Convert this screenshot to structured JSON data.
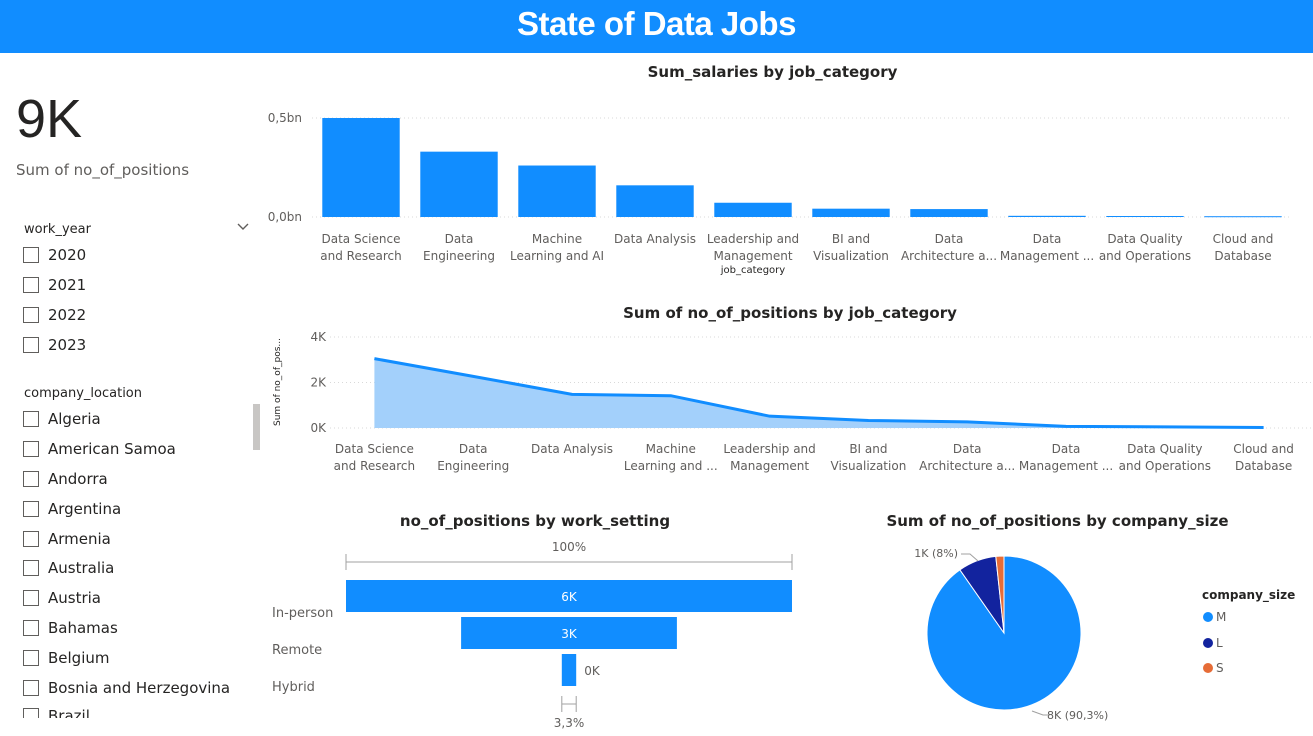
{
  "title": "State of Data Jobs",
  "kpi": {
    "value": "9K",
    "label": "Sum of no_of_positions"
  },
  "slicers": {
    "work_year": {
      "title": "work_year",
      "items": [
        "2020",
        "2021",
        "2022",
        "2023"
      ]
    },
    "company_location": {
      "title": "company_location",
      "items": [
        "Algeria",
        "American Samoa",
        "Andorra",
        "Argentina",
        "Armenia",
        "Australia",
        "Austria",
        "Bahamas",
        "Belgium",
        "Bosnia and Herzegovina",
        "Brazil"
      ]
    }
  },
  "colors": {
    "accent": "#118dff",
    "area_fill": "#a3d0fb",
    "dark_blue": "#12239e",
    "orange": "#e66c37",
    "banner": "#118dff"
  },
  "chart_data": [
    {
      "type": "bar",
      "title": "Sum_salaries by job_category",
      "xlabel": "job_category",
      "ylabel": "",
      "categories": [
        [
          "Data Science",
          "and Research"
        ],
        [
          "Data",
          "Engineering"
        ],
        [
          "Machine",
          "Learning and AI"
        ],
        [
          "Data Analysis"
        ],
        [
          "Leadership and",
          "Management"
        ],
        [
          "BI and",
          "Visualization"
        ],
        [
          "Data",
          "Architecture a..."
        ],
        [
          "Data",
          "Management ..."
        ],
        [
          "Data Quality",
          "and Operations"
        ],
        [
          "Cloud and",
          "Database"
        ]
      ],
      "values": [
        0.5,
        0.33,
        0.26,
        0.16,
        0.072,
        0.042,
        0.04,
        0.006,
        0.005,
        0.004
      ],
      "ylim": [
        0,
        0.5
      ],
      "yticks": [
        {
          "v": 0,
          "label": "0,0bn"
        },
        {
          "v": 0.5,
          "label": "0,5bn"
        }
      ],
      "grid": true
    },
    {
      "type": "area",
      "title": "Sum of no_of_positions by job_category",
      "ylabel": "Sum of no_of_pos...",
      "categories": [
        [
          "Data Science",
          "and Research"
        ],
        [
          "Data",
          "Engineering"
        ],
        [
          "Data Analysis"
        ],
        [
          "Machine",
          "Learning and ..."
        ],
        [
          "Leadership and",
          "Management"
        ],
        [
          "BI and",
          "Visualization"
        ],
        [
          "Data",
          "Architecture a..."
        ],
        [
          "Data",
          "Management ..."
        ],
        [
          "Data Quality",
          "and Operations"
        ],
        [
          "Cloud and",
          "Database"
        ]
      ],
      "values": [
        3050,
        2270,
        1480,
        1420,
        520,
        330,
        270,
        70,
        50,
        20
      ],
      "ylim": [
        0,
        4000
      ],
      "yticks": [
        {
          "v": 0,
          "label": "0K"
        },
        {
          "v": 2000,
          "label": "2K"
        },
        {
          "v": 4000,
          "label": "4K"
        }
      ],
      "grid": true
    },
    {
      "type": "bar",
      "title": "no_of_positions by work_setting",
      "categories": [
        "In-person",
        "Remote",
        "Hybrid"
      ],
      "values": [
        6200,
        3000,
        200
      ],
      "data_labels": [
        "6K",
        "3K",
        "0K"
      ],
      "top_label": "100%",
      "bottom_label": "3,3%"
    },
    {
      "type": "pie",
      "title": "Sum of no_of_positions by company_size",
      "legend_title": "company_size",
      "legend_position": "right",
      "slices": [
        {
          "name": "M",
          "value": 90.3,
          "label": "8K (90,3%)",
          "color": "#118dff"
        },
        {
          "name": "L",
          "value": 8,
          "label": "1K (8%)",
          "color": "#12239e"
        },
        {
          "name": "S",
          "value": 1.7,
          "label": "",
          "color": "#e66c37"
        }
      ]
    }
  ]
}
